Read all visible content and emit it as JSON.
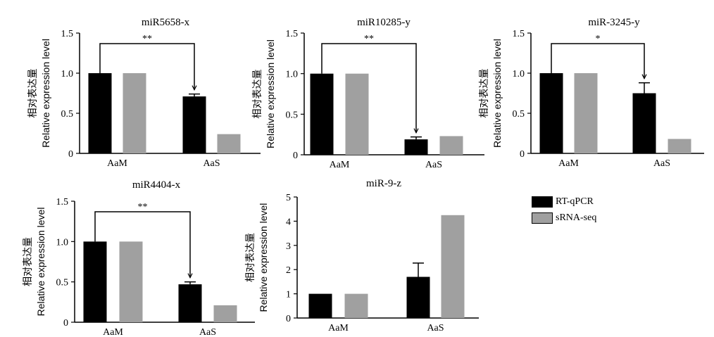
{
  "colors": {
    "rt_qpcr": "#000000",
    "srna_seq": "#a0a0a0"
  },
  "legend": [
    {
      "label": "RT-qPCR",
      "color": "#000000"
    },
    {
      "label": "sRNA-seq",
      "color": "#a0a0a0"
    }
  ],
  "chart_data": [
    {
      "type": "bar",
      "title": "miR5658-x",
      "ylabel_cn": "相对表达量",
      "ylabel": "Relative expression level",
      "categories": [
        "AaM",
        "AaS"
      ],
      "series": [
        {
          "name": "RT-qPCR",
          "values": [
            1.0,
            0.71
          ],
          "errors": [
            0,
            0.03
          ]
        },
        {
          "name": "sRNA-seq",
          "values": [
            1.0,
            0.24
          ]
        }
      ],
      "ylim": [
        0,
        1.5
      ],
      "yticks": [
        "0",
        "0.5",
        "1.0",
        "1.5"
      ],
      "significance": "**"
    },
    {
      "type": "bar",
      "title": "miR10285-y",
      "ylabel_cn": "相对表达量",
      "ylabel": "Relative expression level",
      "categories": [
        "AaM",
        "AaS"
      ],
      "series": [
        {
          "name": "RT-qPCR",
          "values": [
            1.0,
            0.19
          ],
          "errors": [
            0,
            0.03
          ]
        },
        {
          "name": "sRNA-seq",
          "values": [
            1.0,
            0.23
          ]
        }
      ],
      "ylim": [
        0,
        1.5
      ],
      "yticks": [
        "0",
        "0.5",
        "1.0",
        "1.5"
      ],
      "significance": "**"
    },
    {
      "type": "bar",
      "title": "miR-3245-y",
      "ylabel_cn": "相对表达量",
      "ylabel": "Relative expression level",
      "categories": [
        "AaM",
        "AaS"
      ],
      "series": [
        {
          "name": "RT-qPCR",
          "values": [
            1.0,
            0.75
          ],
          "errors": [
            0,
            0.13
          ]
        },
        {
          "name": "sRNA-seq",
          "values": [
            1.0,
            0.18
          ]
        }
      ],
      "ylim": [
        0,
        1.5
      ],
      "yticks": [
        "0",
        "0.5",
        "1.0",
        "1.5"
      ],
      "significance": "*"
    },
    {
      "type": "bar",
      "title": "miR4404-x",
      "ylabel_cn": "相对表达量",
      "ylabel": "Relative expression level",
      "categories": [
        "AaM",
        "AaS"
      ],
      "series": [
        {
          "name": "RT-qPCR",
          "values": [
            1.0,
            0.47
          ],
          "errors": [
            0,
            0.03
          ]
        },
        {
          "name": "sRNA-seq",
          "values": [
            1.0,
            0.21
          ]
        }
      ],
      "ylim": [
        0,
        1.5
      ],
      "yticks": [
        "0",
        "0.5",
        "1.0",
        "1.5"
      ],
      "significance": "**"
    },
    {
      "type": "bar",
      "title": "miR-9-z",
      "ylabel_cn": "相对表达量",
      "ylabel": "Relative expression level",
      "categories": [
        "AaM",
        "AaS"
      ],
      "series": [
        {
          "name": "RT-qPCR",
          "values": [
            1.0,
            1.7
          ],
          "errors": [
            0,
            0.57
          ]
        },
        {
          "name": "sRNA-seq",
          "values": [
            1.0,
            4.25
          ]
        }
      ],
      "ylim": [
        0,
        5
      ],
      "yticks": [
        "0",
        "1",
        "2",
        "3",
        "4",
        "5"
      ],
      "significance": ""
    }
  ]
}
